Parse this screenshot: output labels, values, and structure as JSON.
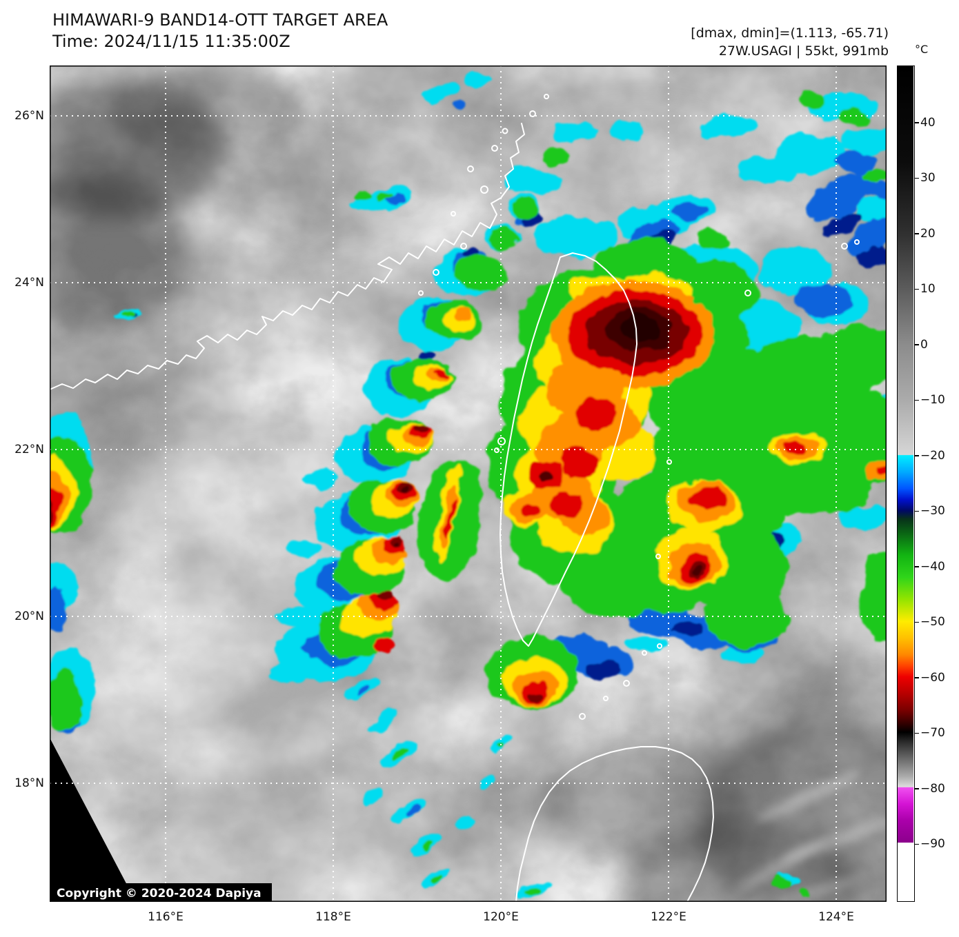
{
  "header": {
    "title": "HIMAWARI-9 BAND14-OTT TARGET AREA",
    "time": "Time: 2024/11/15 11:35:00Z"
  },
  "annotation": {
    "range": "[dmax, dmin]=(1.113, -65.71)",
    "storm": "27W.USAGI | 55kt, 991mb"
  },
  "colorbar": {
    "unit": "°C",
    "ticks": [
      "40",
      "30",
      "20",
      "10",
      "0",
      "−10",
      "−20",
      "−30",
      "−40",
      "−50",
      "−60",
      "−70",
      "−80",
      "−90"
    ],
    "tick_values": [
      40,
      30,
      20,
      10,
      0,
      -10,
      -20,
      -30,
      -40,
      -50,
      -60,
      -70,
      -80,
      -90
    ],
    "stops": [
      {
        "v": 50.3,
        "c": "#000000"
      },
      {
        "v": 33,
        "c": "#0c0c0c"
      },
      {
        "v": 20,
        "c": "#303030"
      },
      {
        "v": 10,
        "c": "#5c5c5c"
      },
      {
        "v": 0,
        "c": "#8c8c8c"
      },
      {
        "v": -10,
        "c": "#ababab"
      },
      {
        "v": -19.9,
        "c": "#d6d6d6"
      },
      {
        "v": -20,
        "c": "#00eeff"
      },
      {
        "v": -23,
        "c": "#00aaff"
      },
      {
        "v": -26,
        "c": "#0055ff"
      },
      {
        "v": -28,
        "c": "#0011cc"
      },
      {
        "v": -30,
        "c": "#000a64"
      },
      {
        "v": -31.5,
        "c": "#08321a"
      },
      {
        "v": -34,
        "c": "#0a6414"
      },
      {
        "v": -38,
        "c": "#12b412"
      },
      {
        "v": -42,
        "c": "#2fd51a"
      },
      {
        "v": -46,
        "c": "#93e400"
      },
      {
        "v": -50,
        "c": "#ffec00"
      },
      {
        "v": -53,
        "c": "#ffc000"
      },
      {
        "v": -56,
        "c": "#ff8800"
      },
      {
        "v": -58,
        "c": "#ff4400"
      },
      {
        "v": -60,
        "c": "#ee0000"
      },
      {
        "v": -63,
        "c": "#b80000"
      },
      {
        "v": -66,
        "c": "#7a0000"
      },
      {
        "v": -68,
        "c": "#400000"
      },
      {
        "v": -70,
        "c": "#000000"
      },
      {
        "v": -72,
        "c": "#303030"
      },
      {
        "v": -75,
        "c": "#6e6e6e"
      },
      {
        "v": -78,
        "c": "#ababab"
      },
      {
        "v": -79.9,
        "c": "#dedede"
      },
      {
        "v": -80,
        "c": "#f050f0"
      },
      {
        "v": -83,
        "c": "#d413d4"
      },
      {
        "v": -86,
        "c": "#aa00aa"
      },
      {
        "v": -89.9,
        "c": "#8c008c"
      },
      {
        "v": -90,
        "c": "#ffffff"
      },
      {
        "v": -100.4,
        "c": "#ffffff"
      }
    ]
  },
  "axes": {
    "lon_labels": [
      "116°E",
      "118°E",
      "120°E",
      "122°E",
      "124°E"
    ],
    "lat_labels": [
      "26°N",
      "24°N",
      "22°N",
      "20°N",
      "18°N"
    ]
  },
  "copyright": "Copyright © 2020-2024 Dapiya",
  "colors": {
    "coastline": "#ffffff",
    "gridline": "#ffffff",
    "background_cloud_gray": "#969696",
    "deep_convection_core": "#200606"
  }
}
